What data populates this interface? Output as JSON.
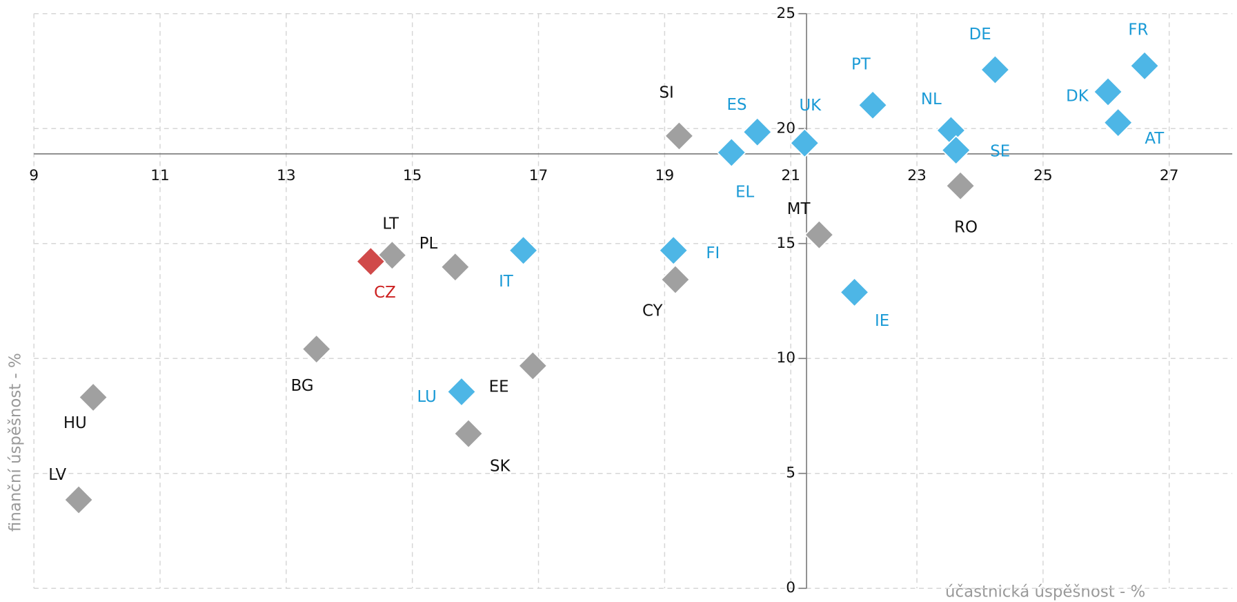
{
  "chart_data": {
    "type": "scatter",
    "x_label": "účastnická úspěšnost - %",
    "y_label": "finanční úspěšnost - %",
    "xlim": [
      9,
      28
    ],
    "ylim": [
      0,
      25
    ],
    "xticks": [
      9,
      11,
      13,
      15,
      17,
      19,
      21,
      23,
      25,
      27
    ],
    "yticks": [
      0,
      5,
      10,
      15,
      20,
      25
    ],
    "grid": true,
    "axis_cross": {
      "x": 21.25,
      "y": 18.9
    },
    "labels": [
      "FR",
      "DE",
      "DK",
      "AT",
      "PT",
      "NL",
      "SE",
      "RO",
      "UK",
      "ES",
      "EL",
      "SI",
      "MT",
      "IE",
      "FI",
      "CY",
      "IT",
      "PL",
      "LT",
      "CZ",
      "BG",
      "EE",
      "LU",
      "SK",
      "HU",
      "LV"
    ],
    "x": [
      26.61,
      24.24,
      26.03,
      26.19,
      22.3,
      23.54,
      23.62,
      23.69,
      21.22,
      20.47,
      20.06,
      19.23,
      21.45,
      22.01,
      19.14,
      19.17,
      16.76,
      15.68,
      14.68,
      14.34,
      13.48,
      16.91,
      15.78,
      15.89,
      9.94,
      9.71
    ],
    "y": [
      22.73,
      22.56,
      21.6,
      20.26,
      21.02,
      19.92,
      19.06,
      17.51,
      19.37,
      19.85,
      18.96,
      19.68,
      15.38,
      12.88,
      14.7,
      13.43,
      14.7,
      13.98,
      14.49,
      14.22,
      10.41,
      9.68,
      8.55,
      6.73,
      8.31,
      3.85
    ],
    "colors": [
      "#4db6e6",
      "#4db6e6",
      "#4db6e6",
      "#4db6e6",
      "#4db6e6",
      "#4db6e6",
      "#4db6e6",
      "#a0a0a0",
      "#4db6e6",
      "#4db6e6",
      "#4db6e6",
      "#a0a0a0",
      "#a0a0a0",
      "#4db6e6",
      "#4db6e6",
      "#a0a0a0",
      "#4db6e6",
      "#a0a0a0",
      "#a0a0a0",
      "#d04a4a",
      "#a0a0a0",
      "#a0a0a0",
      "#4db6e6",
      "#a0a0a0",
      "#a0a0a0",
      "#a0a0a0"
    ],
    "label_colors": [
      "#1a9ad6",
      "#1a9ad6",
      "#1a9ad6",
      "#1a9ad6",
      "#1a9ad6",
      "#1a9ad6",
      "#1a9ad6",
      "#111111",
      "#1a9ad6",
      "#1a9ad6",
      "#1a9ad6",
      "#111111",
      "#111111",
      "#1a9ad6",
      "#1a9ad6",
      "#111111",
      "#1a9ad6",
      "#111111",
      "#111111",
      "#cc2020",
      "#111111",
      "#111111",
      "#1a9ad6",
      "#111111",
      "#111111",
      "#111111"
    ]
  }
}
